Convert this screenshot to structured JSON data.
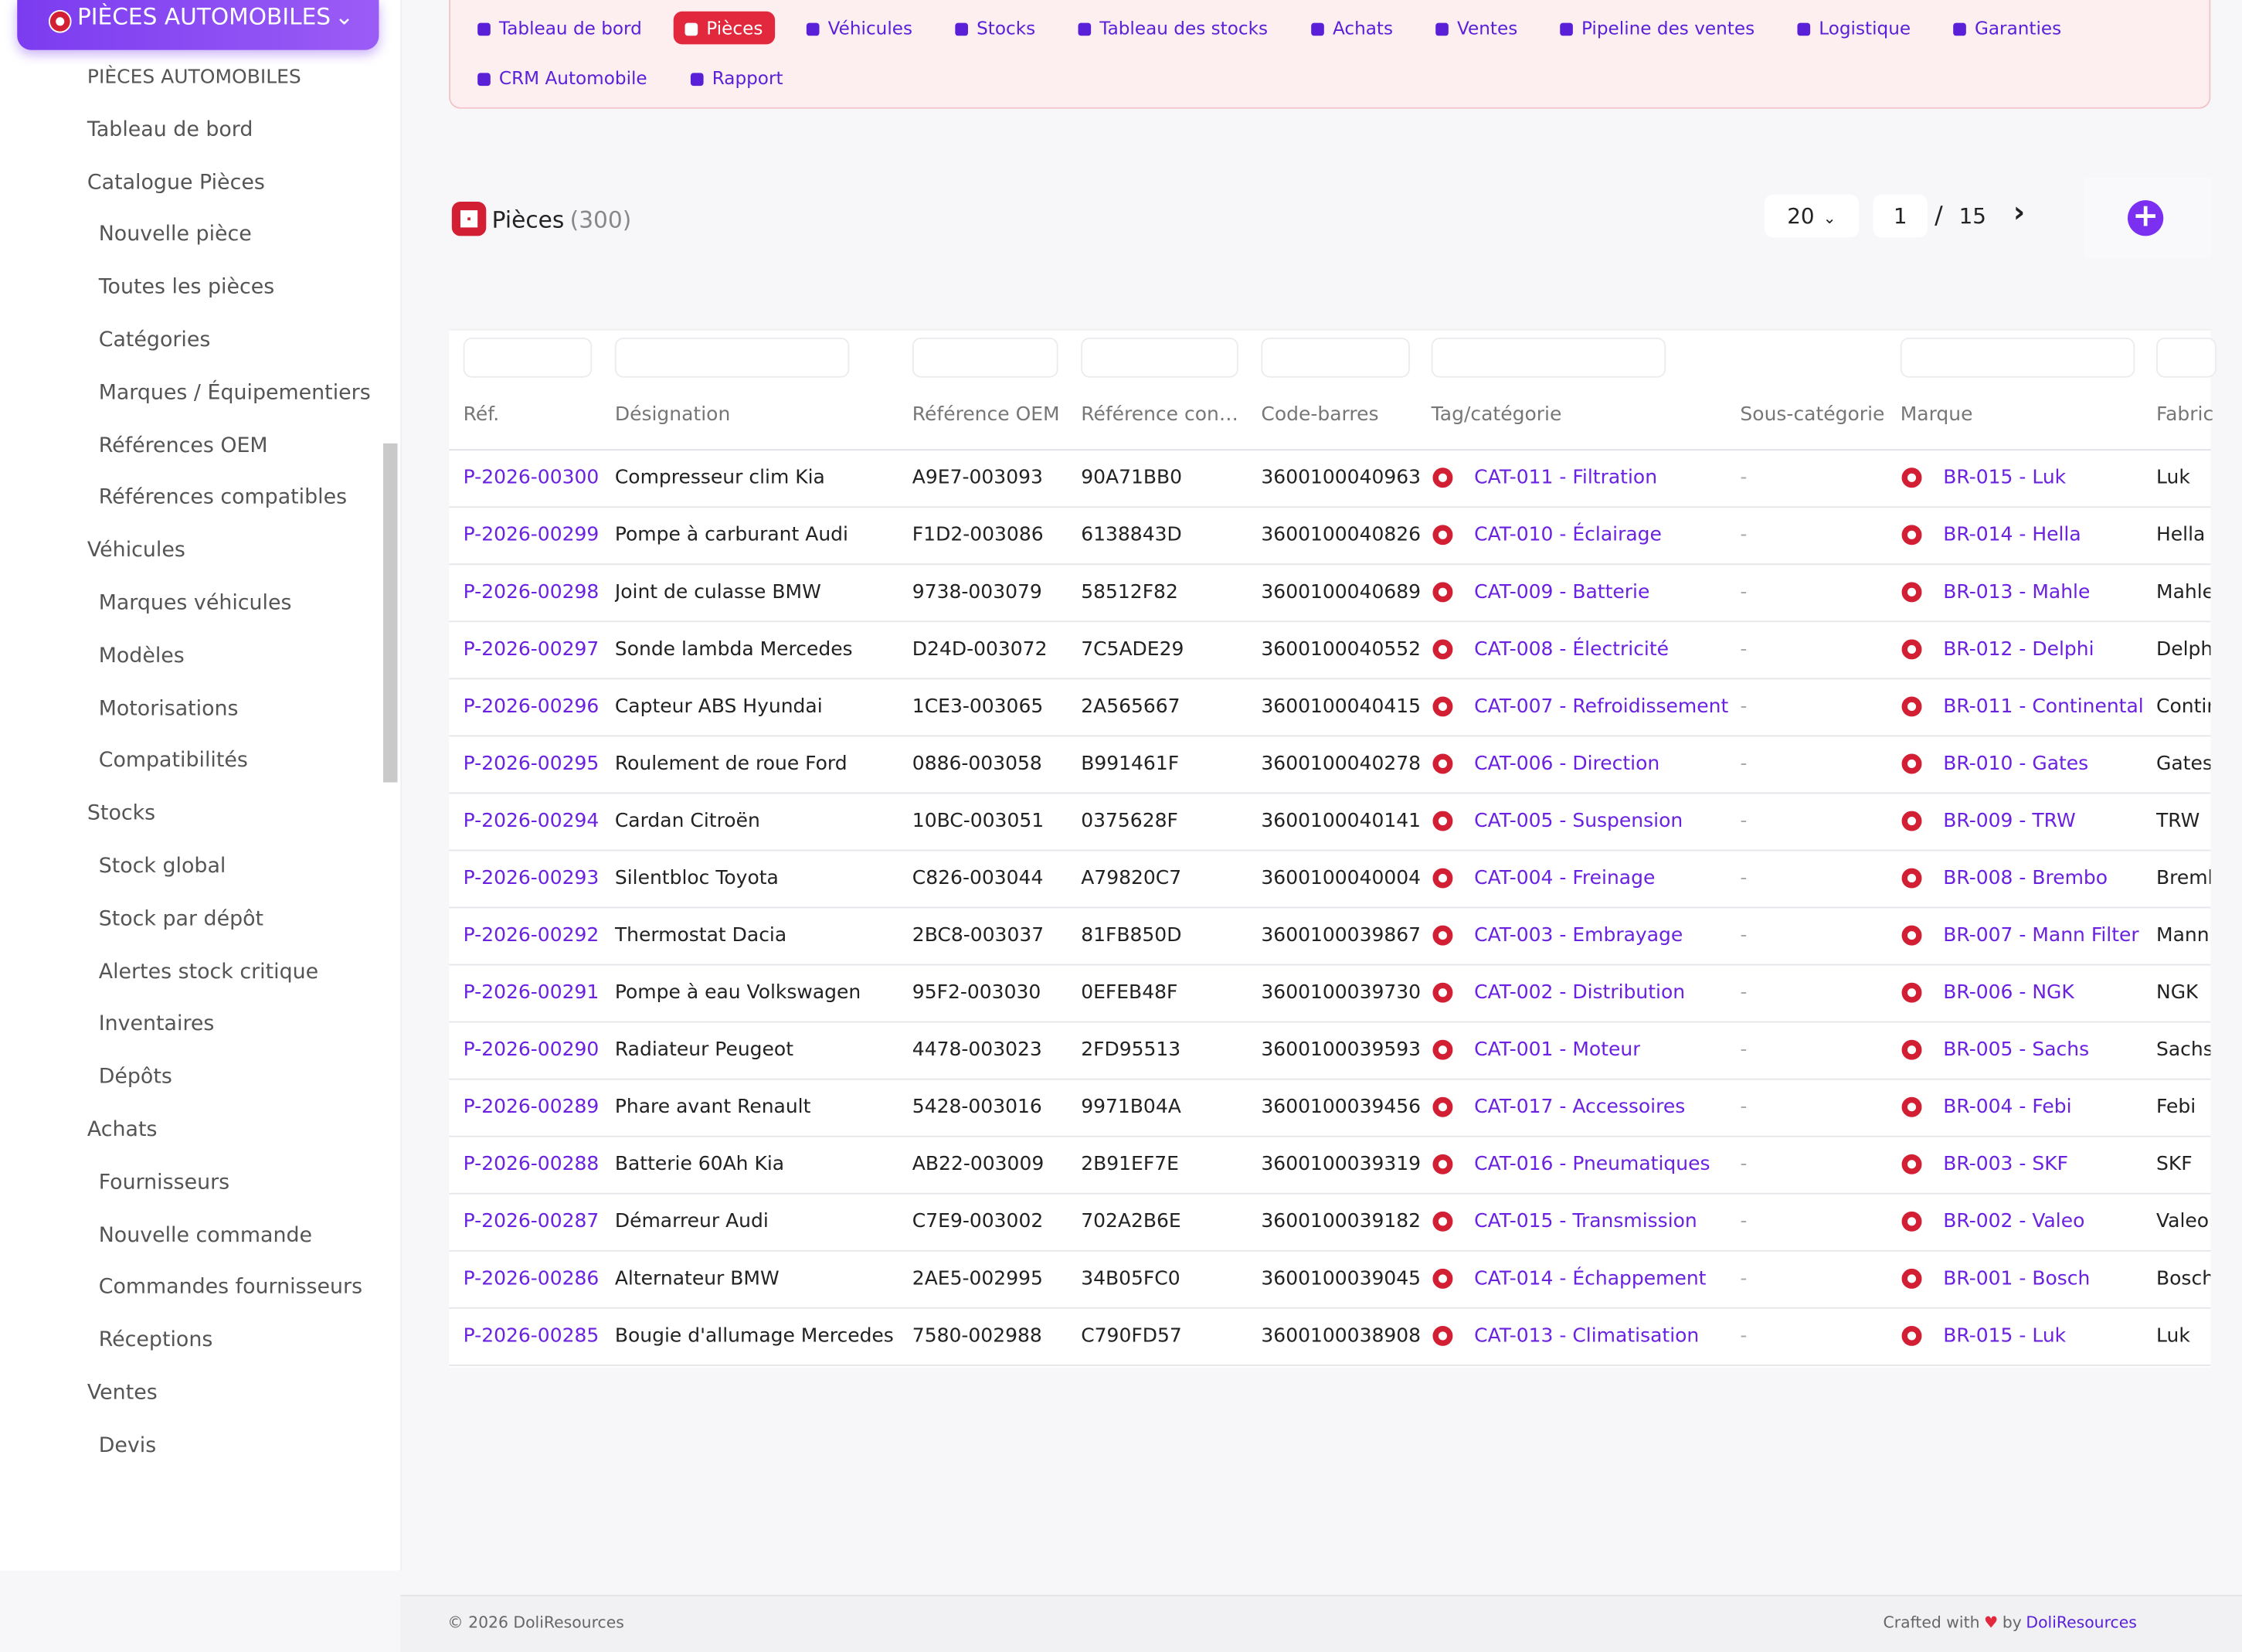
{
  "sidebar": {
    "brand": "PIÈCES AUTOMOBILES",
    "groups": [
      {
        "label": "PIÈCES AUTOMOBILES",
        "children": []
      },
      {
        "label": "Tableau de bord",
        "children": []
      },
      {
        "label": "Catalogue Pièces",
        "children": [
          "Nouvelle pièce",
          "Toutes les pièces",
          "Catégories",
          "Marques / Équipementiers",
          "Références OEM",
          "Références compatibles"
        ]
      },
      {
        "label": "Véhicules",
        "children": [
          "Marques véhicules",
          "Modèles",
          "Motorisations",
          "Compatibilités"
        ]
      },
      {
        "label": "Stocks",
        "children": [
          "Stock global",
          "Stock par dépôt",
          "Alertes stock critique",
          "Inventaires",
          "Dépôts"
        ]
      },
      {
        "label": "Achats",
        "children": [
          "Fournisseurs",
          "Nouvelle commande",
          "Commandes fournisseurs",
          "Réceptions"
        ]
      },
      {
        "label": "Ventes",
        "children": [
          "Devis"
        ]
      }
    ]
  },
  "nav": {
    "tabs": [
      "Tableau de bord",
      "Pièces",
      "Véhicules",
      "Stocks",
      "Tableau des stocks",
      "Achats",
      "Ventes",
      "Pipeline des ventes",
      "Logistique",
      "Garanties",
      "CRM Automobile",
      "Rapport"
    ],
    "active_tab": 1
  },
  "heading": {
    "title": "Pièces",
    "count": "(300)"
  },
  "pagination": {
    "per_page": 20,
    "page": 1,
    "separator": "/",
    "total_pages": 15
  },
  "table": {
    "columns": [
      "Réf.",
      "Désignation",
      "Référence OEM",
      "Référence con…",
      "Code-barres",
      "Tag/catégorie",
      "Sous-catégorie",
      "Marque",
      "Fabric"
    ],
    "rows": [
      [
        "P-2026-00300",
        "Compresseur clim Kia",
        "A9E7-003093",
        "90A71BB0",
        "3600100040963",
        "CAT-011 - Filtration",
        "-",
        "BR-015 - Luk",
        "Luk"
      ],
      [
        "P-2026-00299",
        "Pompe à carburant Audi",
        "F1D2-003086",
        "6138843D",
        "3600100040826",
        "CAT-010 - Éclairage",
        "-",
        "BR-014 - Hella",
        "Hella"
      ],
      [
        "P-2026-00298",
        "Joint de culasse BMW",
        "9738-003079",
        "58512F82",
        "3600100040689",
        "CAT-009 - Batterie",
        "-",
        "BR-013 - Mahle",
        "Mahle"
      ],
      [
        "P-2026-00297",
        "Sonde lambda Mercedes",
        "D24D-003072",
        "7C5ADE29",
        "3600100040552",
        "CAT-008 - Électricité",
        "-",
        "BR-012 - Delphi",
        "Delphi"
      ],
      [
        "P-2026-00296",
        "Capteur ABS Hyundai",
        "1CE3-003065",
        "2A565667",
        "3600100040415",
        "CAT-007 - Refroidissement",
        "-",
        "BR-011 - Continental",
        "Contir"
      ],
      [
        "P-2026-00295",
        "Roulement de roue Ford",
        "0886-003058",
        "B991461F",
        "3600100040278",
        "CAT-006 - Direction",
        "-",
        "BR-010 - Gates",
        "Gates"
      ],
      [
        "P-2026-00294",
        "Cardan Citroën",
        "10BC-003051",
        "0375628F",
        "3600100040141",
        "CAT-005 - Suspension",
        "-",
        "BR-009 - TRW",
        "TRW"
      ],
      [
        "P-2026-00293",
        "Silentbloc Toyota",
        "C826-003044",
        "A79820C7",
        "3600100040004",
        "CAT-004 - Freinage",
        "-",
        "BR-008 - Brembo",
        "Bremb"
      ],
      [
        "P-2026-00292",
        "Thermostat Dacia",
        "2BC8-003037",
        "81FB850D",
        "3600100039867",
        "CAT-003 - Embrayage",
        "-",
        "BR-007 - Mann Filter",
        "Mann"
      ],
      [
        "P-2026-00291",
        "Pompe à eau Volkswagen",
        "95F2-003030",
        "0EFEB48F",
        "3600100039730",
        "CAT-002 - Distribution",
        "-",
        "BR-006 - NGK",
        "NGK"
      ],
      [
        "P-2026-00290",
        "Radiateur Peugeot",
        "4478-003023",
        "2FD95513",
        "3600100039593",
        "CAT-001 - Moteur",
        "-",
        "BR-005 - Sachs",
        "Sachs"
      ],
      [
        "P-2026-00289",
        "Phare avant Renault",
        "5428-003016",
        "9971B04A",
        "3600100039456",
        "CAT-017 - Accessoires",
        "-",
        "BR-004 - Febi",
        "Febi"
      ],
      [
        "P-2026-00288",
        "Batterie 60Ah Kia",
        "AB22-003009",
        "2B91EF7E",
        "3600100039319",
        "CAT-016 - Pneumatiques",
        "-",
        "BR-003 - SKF",
        "SKF"
      ],
      [
        "P-2026-00287",
        "Démarreur Audi",
        "C7E9-003002",
        "702A2B6E",
        "3600100039182",
        "CAT-015 - Transmission",
        "-",
        "BR-002 - Valeo",
        "Valeo"
      ],
      [
        "P-2026-00286",
        "Alternateur BMW",
        "2AE5-002995",
        "34B05FC0",
        "3600100039045",
        "CAT-014 - Échappement",
        "-",
        "BR-001 - Bosch",
        "Bosch"
      ],
      [
        "P-2026-00285",
        "Bougie d'allumage Mercedes",
        "7580-002988",
        "C790FD57",
        "3600100038908",
        "CAT-013 - Climatisation",
        "-",
        "BR-015 - Luk",
        "Luk"
      ]
    ]
  },
  "footer": {
    "copyright": "© 2026 DoliResources",
    "crafted": "Crafted with",
    "by": "by",
    "link": "DoliResources"
  }
}
